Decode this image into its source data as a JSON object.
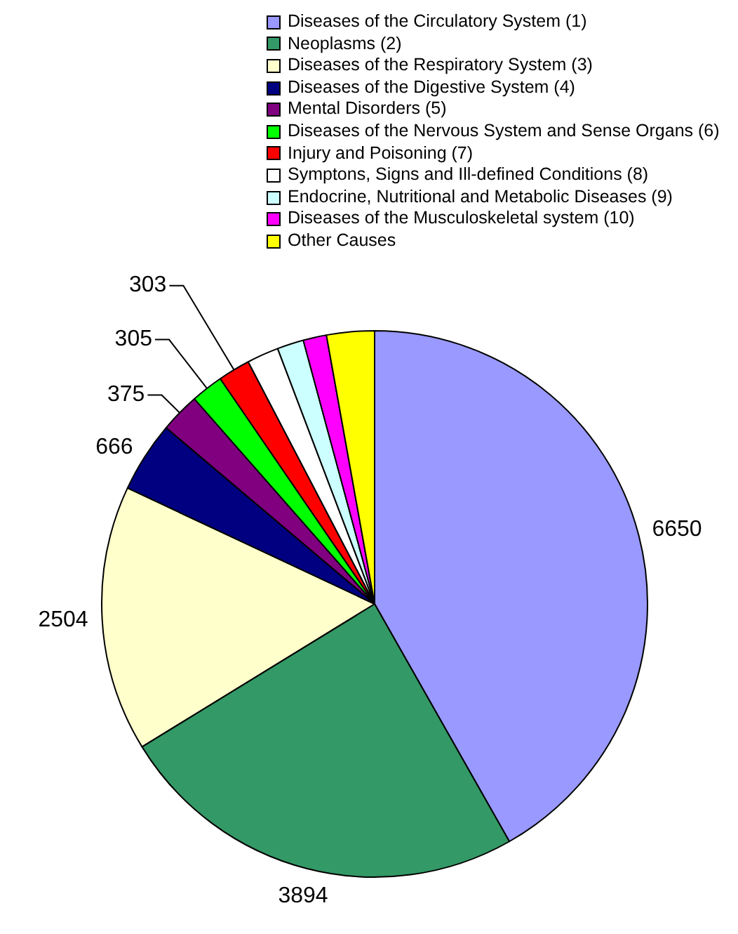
{
  "chart_data": {
    "type": "pie",
    "categories": [
      "Diseases of the Circulatory System (1)",
      "Neoplasms (2)",
      "Diseases of the Respiratory System (3)",
      "Diseases of the Digestive System (4)",
      "Mental Disorders (5)",
      "Diseases of the Nervous System and Sense Organs (6)",
      "Injury and Poisoning (7)",
      "Symptons, Signs and Ill-defined Conditions (8)",
      "Endocrine, Nutritional and Metabolic Diseases (9)",
      "Diseases of the Musculoskeletal system (10)",
      "Other Causes"
    ],
    "values": [
      6650,
      3894,
      2504,
      666,
      375,
      305,
      303,
      300,
      250,
      220,
      450
    ],
    "colors": [
      "#9999ff",
      "#339966",
      "#ffffcc",
      "#000080",
      "#800080",
      "#00ff00",
      "#ff0000",
      "#ffffff",
      "#ccffff",
      "#ff00ff",
      "#ffff00"
    ],
    "value_labels": [
      "6650",
      "3894",
      "2504",
      "666",
      "375",
      "305",
      "303",
      null,
      null,
      null,
      null
    ],
    "legend": "top"
  }
}
